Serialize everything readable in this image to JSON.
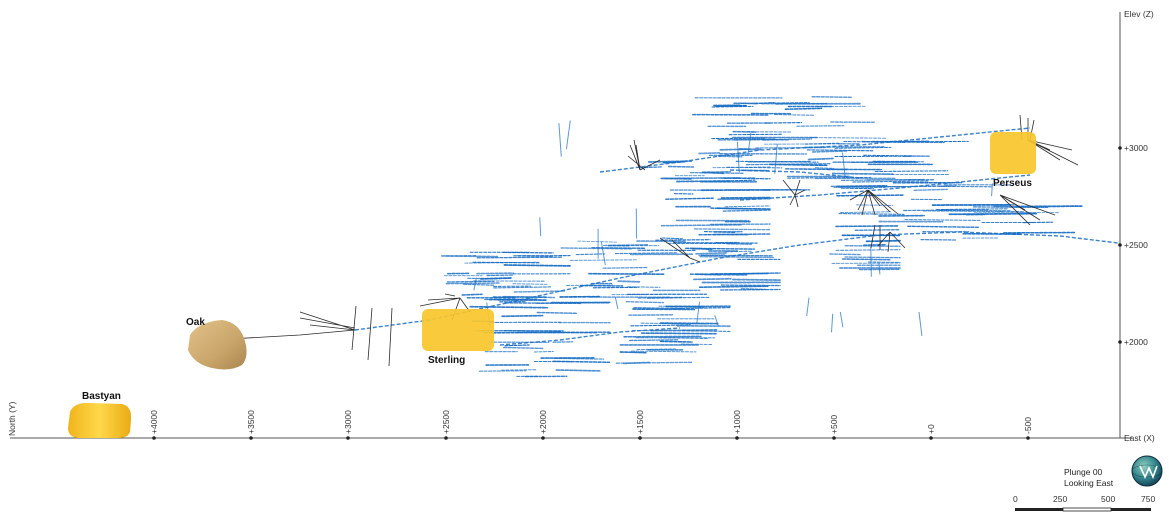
{
  "axes": {
    "elevation_title": "Elev (Z)",
    "north_title": "North (Y)",
    "east_title": "East (X)",
    "east_ticks": [
      "+4000",
      "+3500",
      "+3000",
      "+2500",
      "+2000",
      "+1500",
      "+1000",
      "+500",
      "+0",
      "-500"
    ],
    "elevation_ticks": [
      "+3000",
      "+2500",
      "+2000"
    ]
  },
  "zones": {
    "bastyan": "Bastyan",
    "oak": "Oak",
    "sterling": "Sterling",
    "perseus": "Perseus"
  },
  "view": {
    "plunge": "Plunge 00",
    "looking": "Looking East"
  },
  "scale_bar": {
    "labels": [
      "0",
      "250",
      "500",
      "750"
    ]
  },
  "colors": {
    "workings": "#1a6fc4",
    "drillholes": "#2b2b2b",
    "orebody_yellow": "#f7c52b",
    "oak_tan": "#c9a76a"
  },
  "icons": {
    "compass": "view-orientation-globe-icon"
  }
}
